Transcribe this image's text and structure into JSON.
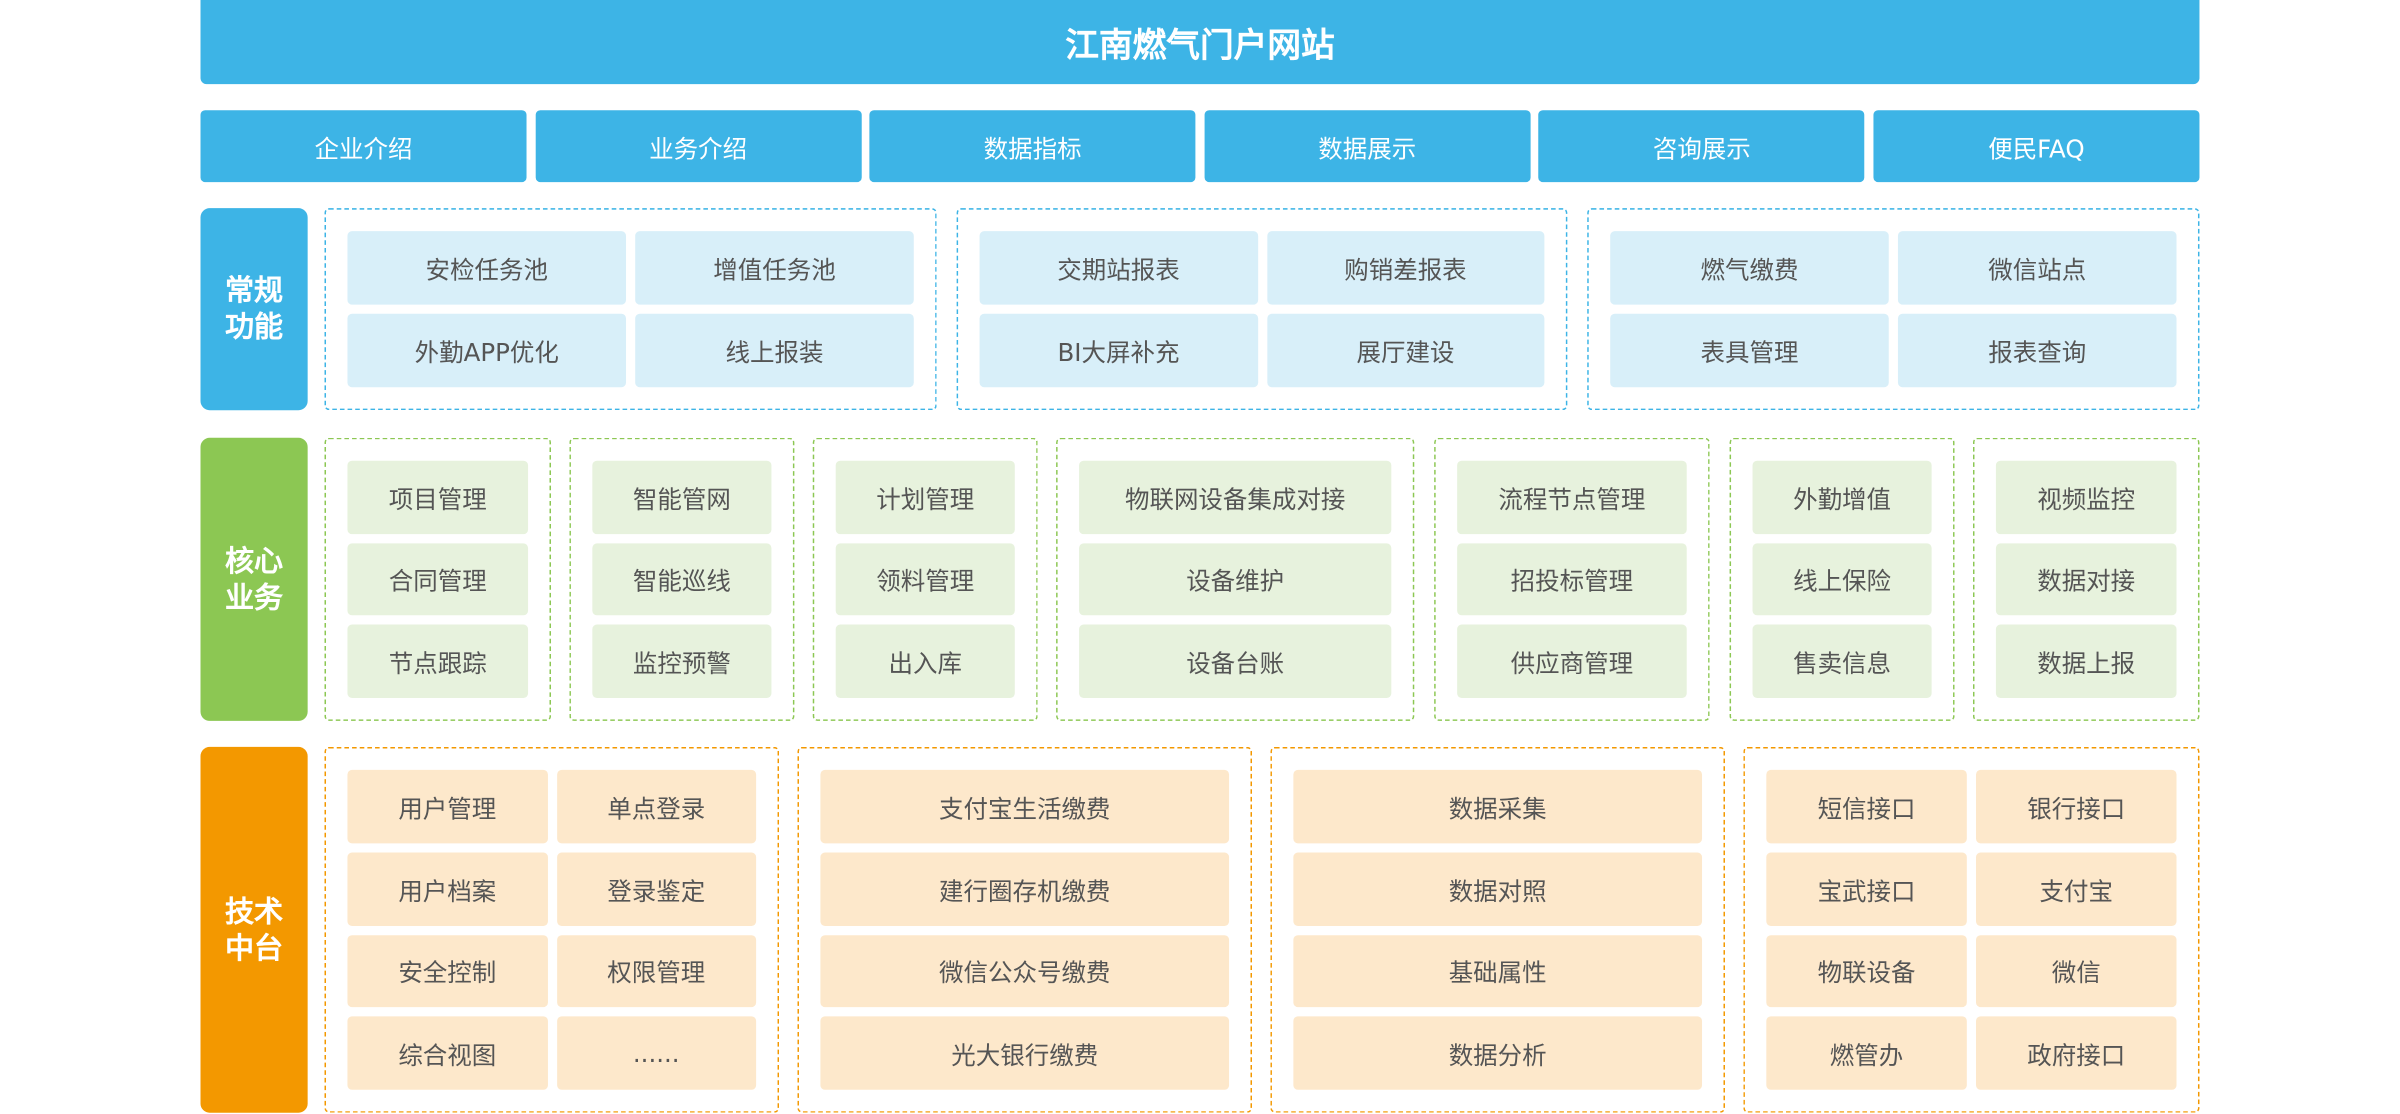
{
  "title": "江南燃气门户网站",
  "nav": [
    "企业介绍",
    "业务介绍",
    "数据指标",
    "数据展示",
    "咨询展示",
    "便民FAQ"
  ],
  "colors": {
    "blue": "#3db4e6",
    "green": "#8cc753",
    "orange": "#f39800"
  },
  "rows": [
    {
      "label": "常规功能",
      "groups": [
        {
          "cols": 2,
          "items": [
            "安检任务池",
            "增值任务池",
            "外勤APP优化",
            "线上报装"
          ]
        },
        {
          "cols": 2,
          "items": [
            "交期站报表",
            "购销差报表",
            "BI大屏补充",
            "展厅建设"
          ]
        },
        {
          "cols": 2,
          "items": [
            "燃气缴费",
            "微信站点",
            "表具管理",
            "报表查询"
          ]
        }
      ]
    },
    {
      "label": "核心业务",
      "groups": [
        {
          "cols": 1,
          "items": [
            "项目管理",
            "合同管理",
            "节点跟踪"
          ]
        },
        {
          "cols": 1,
          "items": [
            "智能管网",
            "智能巡线",
            "监控预警"
          ]
        },
        {
          "cols": 1,
          "items": [
            "计划管理",
            "领料管理",
            "出入库"
          ]
        },
        {
          "cols": 1,
          "items": [
            "物联网设备集成对接",
            "设备维护",
            "设备台账"
          ]
        },
        {
          "cols": 1,
          "items": [
            "流程节点管理",
            "招投标管理",
            "供应商管理"
          ]
        },
        {
          "cols": 1,
          "items": [
            "外勤增值",
            "线上保险",
            "售卖信息"
          ]
        },
        {
          "cols": 1,
          "items": [
            "视频监控",
            "数据对接",
            "数据上报"
          ]
        }
      ]
    },
    {
      "label": "技术中台",
      "groups": [
        {
          "cols": 2,
          "items": [
            "用户管理",
            "单点登录",
            "用户档案",
            "登录鉴定",
            "安全控制",
            "权限管理",
            "综合视图",
            "......"
          ]
        },
        {
          "cols": 1,
          "items": [
            "支付宝生活缴费",
            "建行圈存机缴费",
            "微信公众号缴费",
            "光大银行缴费"
          ]
        },
        {
          "cols": 1,
          "items": [
            "数据采集",
            "数据对照",
            "基础属性",
            "数据分析"
          ]
        },
        {
          "cols": 2,
          "items": [
            "短信接口",
            "银行接口",
            "宝武接口",
            "支付宝",
            "物联设备",
            "微信",
            "燃管办",
            "政府接口"
          ]
        }
      ]
    }
  ]
}
